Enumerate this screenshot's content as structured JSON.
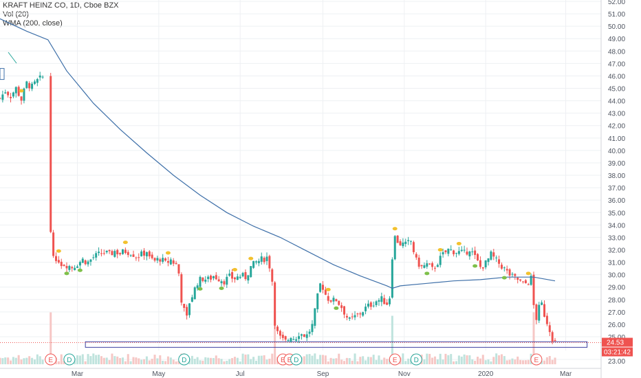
{
  "legend": {
    "title": "KRAFT HEINZ CO, 1D, Cboe BZX",
    "volume": "Vol (20)",
    "wma": "WMA (200, close)"
  },
  "price_tag": {
    "value": "24.53",
    "countdown": "03:21:42"
  },
  "colors": {
    "up": "#26a69a",
    "down": "#ef5350",
    "wma": "#3d6fa8",
    "earnings": "#ef5350",
    "dividend": "#26a69a",
    "axis_text": "#4c525e",
    "grid": "#eef0f3",
    "support_box": "#3b3fa0",
    "dot_yellow": "#f2c12e",
    "dot_green": "#7ec04a"
  },
  "chart_data": {
    "type": "candlestick",
    "title": "KRAFT HEINZ CO, 1D, Cboe BZX",
    "yaxis_ticks": [
      "52.00",
      "51.00",
      "50.00",
      "49.00",
      "48.00",
      "47.00",
      "46.00",
      "45.00",
      "44.00",
      "43.00",
      "42.00",
      "41.00",
      "40.00",
      "39.00",
      "38.00",
      "37.00",
      "36.00",
      "35.00",
      "34.00",
      "33.00",
      "32.00",
      "31.00",
      "30.00",
      "29.00",
      "28.00",
      "27.00",
      "26.00",
      "25.00",
      "23.00"
    ],
    "ylim": [
      22.5,
      52.5
    ],
    "xaxis_labels": [
      {
        "label": "Mar",
        "day": 58
      },
      {
        "label": "May",
        "day": 119
      },
      {
        "label": "Jul",
        "day": 180
      },
      {
        "label": "Sep",
        "day": 242
      },
      {
        "label": "Nov",
        "day": 303
      },
      {
        "label": "2020",
        "day": 364
      },
      {
        "label": "Mar",
        "day": 424
      }
    ],
    "xlim": [
      0,
      460
    ],
    "price_path": [
      [
        0,
        44.2
      ],
      [
        4,
        44.8
      ],
      [
        8,
        44.4
      ],
      [
        12,
        45.0
      ],
      [
        16,
        44.1
      ],
      [
        20,
        45.4
      ],
      [
        24,
        45.1
      ],
      [
        28,
        45.6
      ],
      [
        32,
        45.9
      ],
      [
        38,
        33.5
      ],
      [
        40,
        31.8
      ],
      [
        42,
        30.8
      ],
      [
        44,
        31.2
      ],
      [
        46,
        30.9
      ],
      [
        50,
        30.8
      ],
      [
        54,
        30.6
      ],
      [
        58,
        30.9
      ],
      [
        62,
        31.2
      ],
      [
        66,
        31.0
      ],
      [
        70,
        31.4
      ],
      [
        74,
        31.6
      ],
      [
        78,
        31.8
      ],
      [
        82,
        31.6
      ],
      [
        86,
        31.9
      ],
      [
        90,
        31.7
      ],
      [
        94,
        31.9
      ],
      [
        98,
        31.8
      ],
      [
        102,
        31.5
      ],
      [
        106,
        31.6
      ],
      [
        110,
        31.9
      ],
      [
        112,
        31.3
      ],
      [
        116,
        31.1
      ],
      [
        120,
        31.3
      ],
      [
        124,
        30.9
      ],
      [
        128,
        31.2
      ],
      [
        132,
        30.8
      ],
      [
        134,
        30.1
      ],
      [
        136,
        28.0
      ],
      [
        138,
        27.1
      ],
      [
        140,
        26.5
      ],
      [
        142,
        27.8
      ],
      [
        144,
        28.3
      ],
      [
        148,
        29.4
      ],
      [
        152,
        29.7
      ],
      [
        156,
        29.6
      ],
      [
        160,
        29.9
      ],
      [
        164,
        29.7
      ],
      [
        168,
        29.5
      ],
      [
        172,
        29.8
      ],
      [
        176,
        29.7
      ],
      [
        180,
        29.9
      ],
      [
        184,
        29.8
      ],
      [
        188,
        30.6
      ],
      [
        192,
        31.0
      ],
      [
        196,
        31.2
      ],
      [
        200,
        31.4
      ],
      [
        202,
        30.7
      ],
      [
        204,
        29.5
      ],
      [
        206,
        26.2
      ],
      [
        208,
        25.3
      ],
      [
        210,
        24.9
      ],
      [
        212,
        24.7
      ],
      [
        214,
        24.6
      ],
      [
        216,
        24.8
      ],
      [
        218,
        25.1
      ],
      [
        220,
        24.9
      ],
      [
        222,
        25.0
      ],
      [
        224,
        25.3
      ],
      [
        226,
        25.2
      ],
      [
        230,
        25.1
      ],
      [
        234,
        25.9
      ],
      [
        236,
        27.0
      ],
      [
        238,
        28.2
      ],
      [
        240,
        29.2
      ],
      [
        242,
        29.0
      ],
      [
        244,
        28.4
      ],
      [
        246,
        28.1
      ],
      [
        248,
        28.0
      ],
      [
        250,
        27.9
      ],
      [
        252,
        28.0
      ],
      [
        256,
        27.4
      ],
      [
        260,
        26.6
      ],
      [
        262,
        26.3
      ],
      [
        266,
        26.6
      ],
      [
        270,
        26.9
      ],
      [
        274,
        27.3
      ],
      [
        278,
        27.6
      ],
      [
        282,
        27.9
      ],
      [
        286,
        28.0
      ],
      [
        290,
        27.7
      ],
      [
        292,
        28.2
      ],
      [
        294,
        31.5
      ],
      [
        296,
        33.0
      ],
      [
        298,
        32.7
      ],
      [
        300,
        32.5
      ],
      [
        304,
        32.4
      ],
      [
        308,
        32.7
      ],
      [
        312,
        31.1
      ],
      [
        316,
        30.6
      ],
      [
        320,
        30.8
      ],
      [
        324,
        30.4
      ],
      [
        328,
        31.0
      ],
      [
        332,
        31.6
      ],
      [
        336,
        32.0
      ],
      [
        340,
        31.9
      ],
      [
        344,
        31.8
      ],
      [
        348,
        31.7
      ],
      [
        352,
        32.1
      ],
      [
        356,
        31.4
      ],
      [
        360,
        30.6
      ],
      [
        364,
        30.9
      ],
      [
        368,
        31.6
      ],
      [
        372,
        31.1
      ],
      [
        376,
        30.7
      ],
      [
        380,
        30.2
      ],
      [
        384,
        29.8
      ],
      [
        388,
        29.6
      ],
      [
        392,
        29.2
      ],
      [
        396,
        29.4
      ],
      [
        398,
        29.7
      ],
      [
        400,
        27.5
      ],
      [
        402,
        26.5
      ],
      [
        404,
        27.3
      ],
      [
        406,
        27.6
      ],
      [
        408,
        26.8
      ],
      [
        410,
        26.2
      ],
      [
        412,
        25.6
      ],
      [
        414,
        24.9
      ],
      [
        416,
        24.53
      ]
    ],
    "wma_path": [
      [
        0,
        50.6
      ],
      [
        20,
        49.6
      ],
      [
        36,
        48.9
      ],
      [
        50,
        46.4
      ],
      [
        70,
        43.8
      ],
      [
        90,
        41.7
      ],
      [
        110,
        39.8
      ],
      [
        130,
        38.0
      ],
      [
        150,
        36.4
      ],
      [
        170,
        35.0
      ],
      [
        190,
        33.9
      ],
      [
        210,
        33.0
      ],
      [
        230,
        31.9
      ],
      [
        250,
        30.8
      ],
      [
        270,
        29.9
      ],
      [
        290,
        29.1
      ],
      [
        294,
        28.9
      ],
      [
        300,
        29.1
      ],
      [
        320,
        29.3
      ],
      [
        340,
        29.5
      ],
      [
        360,
        29.6
      ],
      [
        380,
        29.8
      ],
      [
        400,
        29.8
      ],
      [
        416,
        29.5
      ]
    ],
    "support_zone": {
      "x0": 64,
      "x1": 440,
      "ymin": 24.15,
      "ymax": 24.6
    },
    "volume_max": 1.0,
    "events": [
      {
        "type": "E",
        "day": 38
      },
      {
        "type": "D",
        "day": 52
      },
      {
        "type": "D",
        "day": 138
      },
      {
        "type": "E",
        "day": 212
      },
      {
        "type": "E",
        "day": 217
      },
      {
        "type": "D",
        "day": 222
      },
      {
        "type": "E",
        "day": 296
      },
      {
        "type": "D",
        "day": 312
      },
      {
        "type": "E",
        "day": 402
      }
    ]
  }
}
